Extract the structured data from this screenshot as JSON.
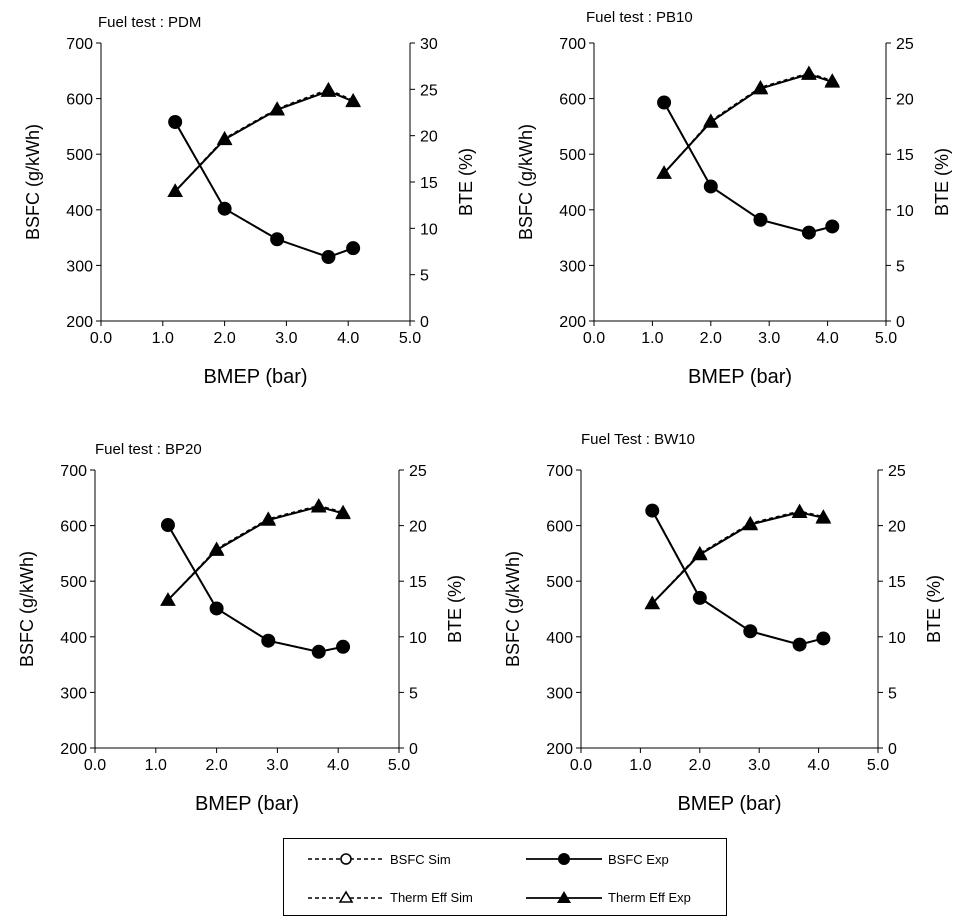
{
  "legend": {
    "bsfc_sim": "BSFC Sim",
    "bsfc_exp": "BSFC Exp",
    "therm_sim": "Therm Eff Sim",
    "therm_exp": "Therm Eff Exp"
  },
  "chart_data": [
    {
      "type": "line",
      "title": "Fuel test : PDM",
      "xlabel": "BMEP (bar)",
      "ylabel": "BSFC (g/kWh)",
      "y2label": "BTE (%)",
      "xlim": [
        0,
        5
      ],
      "xticks": [
        "0.0",
        "1.0",
        "2.0",
        "3.0",
        "4.0",
        "5.0"
      ],
      "ylim": [
        200,
        700
      ],
      "yticks": [
        "200",
        "300",
        "400",
        "500",
        "600",
        "700"
      ],
      "y2lim": [
        0,
        30
      ],
      "y2ticks": [
        "0",
        "5",
        "10",
        "15",
        "20",
        "25",
        "30"
      ],
      "x": [
        1.2,
        2.0,
        2.85,
        3.68,
        4.08
      ],
      "series": [
        {
          "name": "BSFC Sim",
          "axis": "left",
          "values": [
            558,
            402,
            347,
            315,
            331
          ]
        },
        {
          "name": "BSFC Exp",
          "axis": "left",
          "values": [
            558,
            402,
            347,
            315,
            331
          ]
        },
        {
          "name": "Therm Eff Sim",
          "axis": "right",
          "values": [
            14.0,
            19.7,
            22.9,
            25.0,
            23.8
          ]
        },
        {
          "name": "Therm Eff Exp",
          "axis": "right",
          "values": [
            14.0,
            19.6,
            22.8,
            24.8,
            23.7
          ]
        }
      ]
    },
    {
      "type": "line",
      "title": "Fuel test : PB10",
      "xlabel": "BMEP (bar)",
      "ylabel": "BSFC (g/kWh)",
      "y2label": "BTE (%)",
      "xlim": [
        0,
        5
      ],
      "xticks": [
        "0.0",
        "1.0",
        "2.0",
        "3.0",
        "4.0",
        "5.0"
      ],
      "ylim": [
        200,
        700
      ],
      "yticks": [
        "200",
        "300",
        "400",
        "500",
        "600",
        "700"
      ],
      "y2lim": [
        0,
        25
      ],
      "y2ticks": [
        "0",
        "5",
        "10",
        "15",
        "20",
        "25"
      ],
      "x": [
        1.2,
        2.0,
        2.85,
        3.68,
        4.08
      ],
      "series": [
        {
          "name": "BSFC Sim",
          "axis": "left",
          "values": [
            593,
            442,
            382,
            359,
            370
          ]
        },
        {
          "name": "BSFC Exp",
          "axis": "left",
          "values": [
            593,
            442,
            382,
            359,
            370
          ]
        },
        {
          "name": "Therm Eff Sim",
          "axis": "right",
          "values": [
            13.3,
            18.0,
            21.0,
            22.3,
            21.6
          ]
        },
        {
          "name": "Therm Eff Exp",
          "axis": "right",
          "values": [
            13.3,
            17.9,
            20.9,
            22.2,
            21.5
          ]
        }
      ]
    },
    {
      "type": "line",
      "title": "Fuel test : BP20",
      "xlabel": "BMEP (bar)",
      "ylabel": "BSFC (g/kWh)",
      "y2label": "BTE (%)",
      "xlim": [
        0,
        5
      ],
      "xticks": [
        "0.0",
        "1.0",
        "2.0",
        "3.0",
        "4.0",
        "5.0"
      ],
      "ylim": [
        200,
        700
      ],
      "yticks": [
        "200",
        "300",
        "400",
        "500",
        "600",
        "700"
      ],
      "y2lim": [
        0,
        25
      ],
      "y2ticks": [
        "0",
        "5",
        "10",
        "15",
        "20",
        "25"
      ],
      "x": [
        1.2,
        2.0,
        2.85,
        3.68,
        4.08
      ],
      "series": [
        {
          "name": "BSFC Sim",
          "axis": "left",
          "values": [
            601,
            451,
            393,
            373,
            382
          ]
        },
        {
          "name": "BSFC Exp",
          "axis": "left",
          "values": [
            601,
            451,
            393,
            373,
            382
          ]
        },
        {
          "name": "Therm Eff Sim",
          "axis": "right",
          "values": [
            13.3,
            17.9,
            20.6,
            21.8,
            21.2
          ]
        },
        {
          "name": "Therm Eff Exp",
          "axis": "right",
          "values": [
            13.3,
            17.8,
            20.5,
            21.7,
            21.1
          ]
        }
      ]
    },
    {
      "type": "line",
      "title": "Fuel Test : BW10",
      "xlabel": "BMEP (bar)",
      "ylabel": "BSFC (g/kWh)",
      "y2label": "BTE (%)",
      "xlim": [
        0,
        5
      ],
      "xticks": [
        "0.0",
        "1.0",
        "2.0",
        "3.0",
        "4.0",
        "5.0"
      ],
      "ylim": [
        200,
        700
      ],
      "yticks": [
        "200",
        "300",
        "400",
        "500",
        "600",
        "700"
      ],
      "y2lim": [
        0,
        25
      ],
      "y2ticks": [
        "0",
        "5",
        "10",
        "15",
        "20",
        "25"
      ],
      "x": [
        1.2,
        2.0,
        2.85,
        3.68,
        4.08
      ],
      "series": [
        {
          "name": "BSFC Sim",
          "axis": "left",
          "values": [
            627,
            470,
            410,
            386,
            397
          ]
        },
        {
          "name": "BSFC Exp",
          "axis": "left",
          "values": [
            627,
            470,
            410,
            386,
            397
          ]
        },
        {
          "name": "Therm Eff Sim",
          "axis": "right",
          "values": [
            13.0,
            17.5,
            20.2,
            21.3,
            20.8
          ]
        },
        {
          "name": "Therm Eff Exp",
          "axis": "right",
          "values": [
            13.0,
            17.4,
            20.1,
            21.2,
            20.7
          ]
        }
      ]
    }
  ]
}
